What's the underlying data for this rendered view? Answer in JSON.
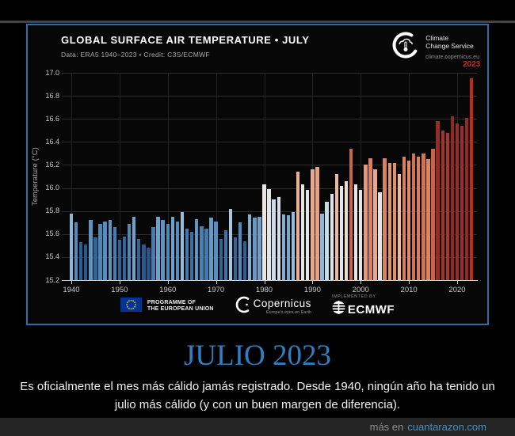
{
  "page": {
    "heading": "JULIO 2023",
    "heading_color": "#2d80c4",
    "caption": "Es oficialmente el mes más cálido jamás registrado. Desde 1940, ningún año ha tenido un julio más cálido (y con un buen margen de diferencia).",
    "watermark_prefix": "más en",
    "watermark_site": "cuantarazon.com"
  },
  "chart": {
    "title": "GLOBAL SURFACE AIR TEMPERATURE • JULY",
    "subtitle": "Data: ERA5 1940–2023 • Credit: C3S/ECMWF",
    "logo": {
      "line1": "Climate",
      "line2": "Change Service",
      "url": "climate.copernicus.eu"
    },
    "footer": {
      "eu_line1": "PROGRAMME OF",
      "eu_line2": "THE EUROPEAN UNION",
      "copernicus": "Copernicus",
      "copernicus_sub": "Europe's eyes on Earth",
      "implemented_by": "IMPLEMENTED BY",
      "ecmwf": "ECMWF"
    }
  },
  "chart_data": {
    "type": "bar",
    "title": "GLOBAL SURFACE AIR TEMPERATURE • JULY",
    "xlabel": "",
    "ylabel": "Temperature (°C)",
    "ylim": [
      15.2,
      17.0
    ],
    "ytick_step": 0.2,
    "grid": true,
    "xticks": [
      1940,
      1950,
      1960,
      1970,
      1980,
      1990,
      2000,
      2010,
      2020
    ],
    "years": [
      1940,
      1941,
      1942,
      1943,
      1944,
      1945,
      1946,
      1947,
      1948,
      1949,
      1950,
      1951,
      1952,
      1953,
      1954,
      1955,
      1956,
      1957,
      1958,
      1959,
      1960,
      1961,
      1962,
      1963,
      1964,
      1965,
      1966,
      1967,
      1968,
      1969,
      1970,
      1971,
      1972,
      1973,
      1974,
      1975,
      1976,
      1977,
      1978,
      1979,
      1980,
      1981,
      1982,
      1983,
      1984,
      1985,
      1986,
      1987,
      1988,
      1989,
      1990,
      1991,
      1992,
      1993,
      1994,
      1995,
      1996,
      1997,
      1998,
      1999,
      2000,
      2001,
      2002,
      2003,
      2004,
      2005,
      2006,
      2007,
      2008,
      2009,
      2010,
      2011,
      2012,
      2013,
      2014,
      2015,
      2016,
      2017,
      2018,
      2019,
      2020,
      2021,
      2022,
      2023
    ],
    "values": [
      15.78,
      15.7,
      15.53,
      15.51,
      15.72,
      15.57,
      15.69,
      15.71,
      15.72,
      15.66,
      15.55,
      15.58,
      15.69,
      15.75,
      15.56,
      15.51,
      15.48,
      15.66,
      15.75,
      15.72,
      15.69,
      15.75,
      15.71,
      15.79,
      15.65,
      15.62,
      15.73,
      15.67,
      15.65,
      15.74,
      15.71,
      15.56,
      15.63,
      15.82,
      15.57,
      15.7,
      15.54,
      15.77,
      15.74,
      15.75,
      16.03,
      15.99,
      15.9,
      15.92,
      15.77,
      15.76,
      15.79,
      16.14,
      16.03,
      15.98,
      16.16,
      16.18,
      15.78,
      15.88,
      15.95,
      16.12,
      16.02,
      16.06,
      16.34,
      16.03,
      15.98,
      16.2,
      16.26,
      16.16,
      15.96,
      16.26,
      16.22,
      16.22,
      16.12,
      16.27,
      16.24,
      16.3,
      16.27,
      16.3,
      16.25,
      16.34,
      16.58,
      16.5,
      16.48,
      16.62,
      16.56,
      16.54,
      16.61,
      16.95
    ],
    "annotation": {
      "text": "2023",
      "color": "#c8281e"
    },
    "highlight_year": 2023,
    "highlight_color": "#c02a1c",
    "color_stops": [
      [
        15.44,
        "#204e7e"
      ],
      [
        15.52,
        "#2a5c90"
      ],
      [
        15.6,
        "#3569a0"
      ],
      [
        15.68,
        "#4a83b6"
      ],
      [
        15.74,
        "#6699c6"
      ],
      [
        15.8,
        "#9fc3de"
      ],
      [
        15.88,
        "#c8d9e8"
      ],
      [
        15.96,
        "#e2e6ea"
      ],
      [
        16.04,
        "#e9e5e1"
      ],
      [
        16.12,
        "#ecb89e"
      ],
      [
        16.22,
        "#e0926f"
      ],
      [
        16.32,
        "#cd6a4e"
      ],
      [
        16.42,
        "#b34433"
      ],
      [
        16.52,
        "#a03028"
      ],
      [
        16.65,
        "#8f2621"
      ],
      [
        16.95,
        "#8f2621"
      ]
    ],
    "legend": null
  }
}
